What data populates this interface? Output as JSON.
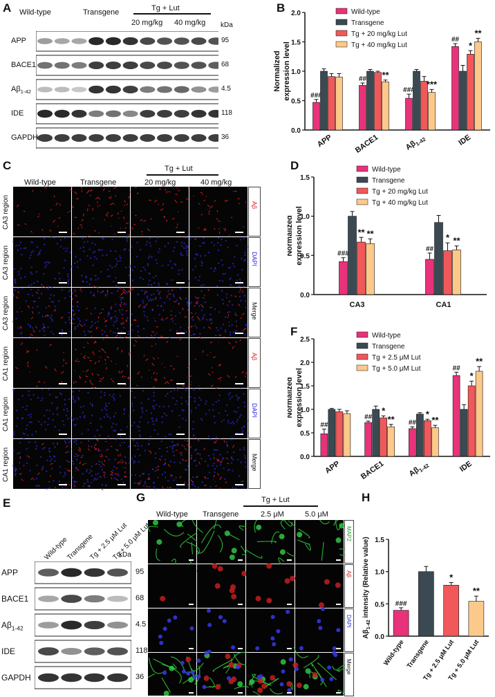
{
  "panels": {
    "A": "A",
    "B": "B",
    "C": "C",
    "D": "D",
    "E": "E",
    "F": "F",
    "G": "G",
    "H": "H"
  },
  "colors": {
    "wt": "#e8327a",
    "tg": "#3b4a52",
    "low": "#f0585a",
    "high": "#fcc98a"
  },
  "blotA": {
    "groups": [
      "Wild-type",
      "Transgene",
      "20 mg/kg",
      "40 mg/kg"
    ],
    "tg_lut": "Tg + Lut",
    "kda": "kDa",
    "rows": [
      {
        "name": "APP",
        "kda": "95"
      },
      {
        "name": "BACE1",
        "kda": "68"
      },
      {
        "name": "Aβ1-42",
        "kda": "4.5"
      },
      {
        "name": "IDE",
        "kda": "118"
      },
      {
        "name": "GAPDH",
        "kda": "36"
      }
    ]
  },
  "blotE": {
    "lanes": [
      "Wild-type",
      "Transgene",
      "Tg + 2.5 μM Lut",
      "Tg + 5.0 μM Lut"
    ],
    "kda": "kDa",
    "rows": [
      {
        "name": "APP",
        "kda": "95"
      },
      {
        "name": "BACE1",
        "kda": "68"
      },
      {
        "name": "Aβ1-42",
        "kda": "4.5"
      },
      {
        "name": "IDE",
        "kda": "118"
      },
      {
        "name": "GAPDH",
        "kda": "36"
      }
    ]
  },
  "microC": {
    "groups": [
      "Wild-type",
      "Transgene",
      "20 mg/kg",
      "40 mg/kg"
    ],
    "tg_lut": "Tg + Lut",
    "rows": [
      {
        "region": "CA3 region",
        "stain": "Aβ"
      },
      {
        "region": "CA3 region",
        "stain": "DAPI"
      },
      {
        "region": "CA3 region",
        "stain": "Merge"
      },
      {
        "region": "CA1 region",
        "stain": "Aβ"
      },
      {
        "region": "CA1 region",
        "stain": "DAPI"
      },
      {
        "region": "CA1 region",
        "stain": "Merge"
      }
    ]
  },
  "microG": {
    "groups": [
      "Wild-type",
      "Transgene",
      "2.5 μM",
      "5.0 μM"
    ],
    "tg_lut": "Tg + Lut",
    "stains": [
      "MAP2",
      "Aβ",
      "DAPI",
      "Merge"
    ]
  },
  "chart_data": [
    {
      "panel": "B",
      "type": "bar",
      "categories": [
        "APP",
        "BACE1",
        "Aβ1-42",
        "IDE"
      ],
      "ylabel": "Normalized expression level",
      "ylim": [
        0,
        2.0
      ],
      "yticks": [
        "0.0",
        "0.5",
        "1.0",
        "1.5",
        "2.0"
      ],
      "legend": [
        "Wild-type",
        "Transgene",
        "Tg + 20 mg/kg Lut",
        "Tg + 40 mg/kg Lut"
      ],
      "series": [
        {
          "values": [
            0.47,
            0.76,
            0.54,
            1.42
          ],
          "err": [
            0.05,
            0.04,
            0.07,
            0.05
          ]
        },
        {
          "values": [
            1.0,
            1.0,
            1.0,
            1.0
          ],
          "err": [
            0.04,
            0.03,
            0.03,
            0.1
          ]
        },
        {
          "values": [
            0.91,
            0.98,
            0.83,
            1.29
          ],
          "err": [
            0.05,
            0.02,
            0.08,
            0.06
          ]
        },
        {
          "values": [
            0.9,
            0.82,
            0.64,
            1.5
          ],
          "err": [
            0.06,
            0.03,
            0.05,
            0.06
          ]
        }
      ],
      "annotations": [
        [
          "###",
          "##",
          "###",
          "##"
        ],
        [
          "",
          "",
          "",
          ""
        ],
        [
          "",
          "",
          "",
          "*"
        ],
        [
          "",
          "**",
          "***",
          "**"
        ]
      ]
    },
    {
      "panel": "D",
      "type": "bar",
      "categories": [
        "CA3",
        "CA1"
      ],
      "ylabel": "Normalized expression level",
      "ylim": [
        0,
        1.5
      ],
      "yticks": [
        "0.0",
        "0.5",
        "1.0",
        "1.5"
      ],
      "legend": [
        "Wild-type",
        "Transgene",
        "Tg + 20 mg/kg Lut",
        "Tg + 40 mg/kg Lut"
      ],
      "series": [
        {
          "values": [
            0.42,
            0.45
          ],
          "err": [
            0.05,
            0.08
          ]
        },
        {
          "values": [
            1.0,
            0.92
          ],
          "err": [
            0.06,
            0.09
          ]
        },
        {
          "values": [
            0.67,
            0.56
          ],
          "err": [
            0.06,
            0.1
          ]
        },
        {
          "values": [
            0.65,
            0.57
          ],
          "err": [
            0.06,
            0.05
          ]
        }
      ],
      "annotations": [
        [
          "###",
          "##"
        ],
        [
          "",
          ""
        ],
        [
          "**",
          "*"
        ],
        [
          "**",
          "**"
        ]
      ]
    },
    {
      "panel": "F",
      "type": "bar",
      "categories": [
        "APP",
        "BACE1",
        "Aβ1-42",
        "IDE"
      ],
      "ylabel": "Normalized expression level",
      "ylim": [
        0,
        2.5
      ],
      "yticks": [
        "0.0",
        "0.5",
        "1.0",
        "1.5",
        "2.0",
        "2.5"
      ],
      "legend": [
        "Wild-type",
        "Transgene",
        "Tg + 2.5 μM Lut",
        "Tg + 5.0 μM Lut"
      ],
      "series": [
        {
          "values": [
            0.48,
            0.72,
            0.59,
            1.72
          ],
          "err": [
            0.1,
            0.03,
            0.04,
            0.07
          ]
        },
        {
          "values": [
            1.0,
            1.0,
            0.9,
            1.0
          ],
          "err": [
            0.02,
            0.07,
            0.03,
            0.1
          ]
        },
        {
          "values": [
            0.95,
            0.82,
            0.76,
            1.5
          ],
          "err": [
            0.05,
            0.04,
            0.03,
            0.1
          ]
        },
        {
          "values": [
            0.91,
            0.63,
            0.61,
            1.81
          ],
          "err": [
            0.06,
            0.05,
            0.05,
            0.1
          ]
        }
      ],
      "annotations": [
        [
          "##",
          "##",
          "##",
          "##"
        ],
        [
          "",
          "",
          "",
          ""
        ],
        [
          "",
          "*",
          "*",
          "*"
        ],
        [
          "",
          "**",
          "**",
          "**"
        ]
      ]
    },
    {
      "panel": "H",
      "type": "bar",
      "categories": [
        "Wild-type",
        "Transgene",
        "Tg + 2.5 μM Lut",
        "Tg + 5.0 μM Lut"
      ],
      "ylabel": "Aβ1-42 intensity (Relative value)",
      "ylim": [
        0,
        1.5
      ],
      "yticks": [
        "0.0",
        "0.5",
        "1.0",
        "1.5"
      ],
      "values": [
        0.4,
        1.0,
        0.79,
        0.54
      ],
      "err": [
        0.04,
        0.08,
        0.04,
        0.08
      ],
      "annotations": [
        "###",
        "",
        "*",
        "**"
      ]
    }
  ]
}
